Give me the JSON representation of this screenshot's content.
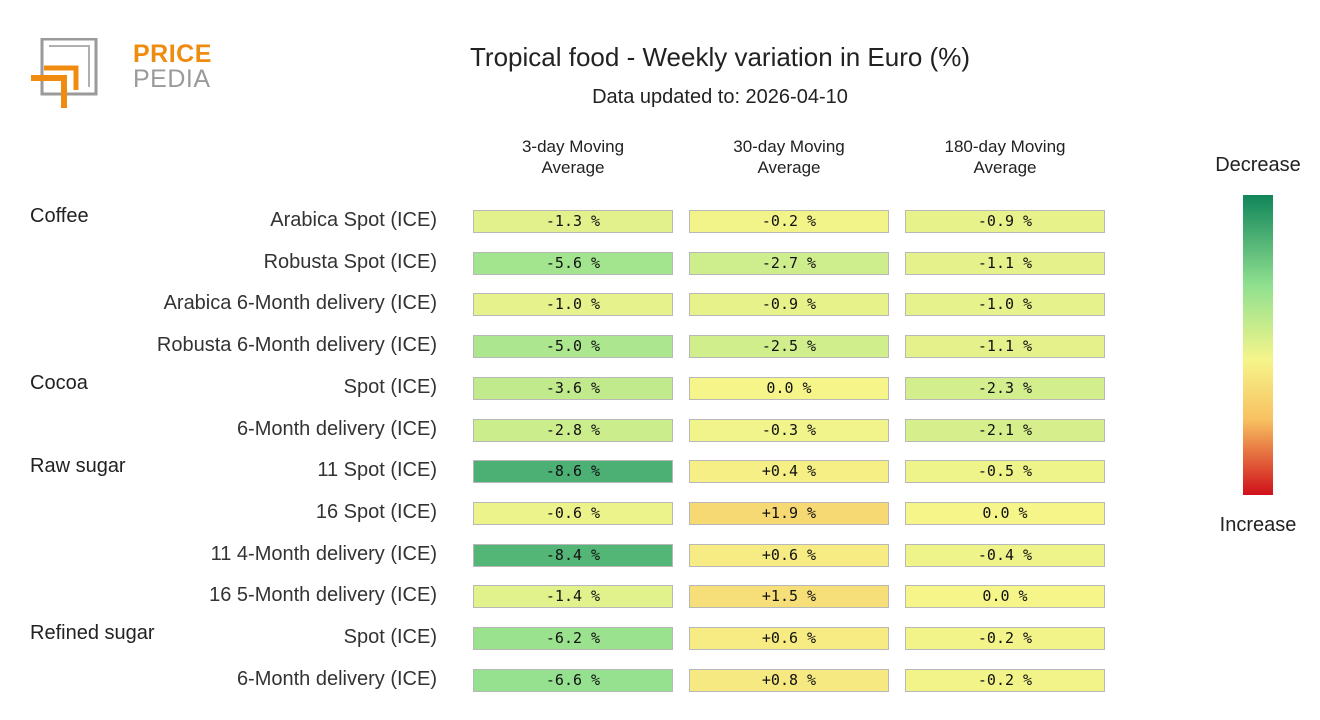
{
  "logo": {
    "line1": "PRICE",
    "line2": "PEDIA"
  },
  "chart_data": {
    "type": "table",
    "title": "Tropical food - Weekly variation in Euro (%)",
    "subtitle": "Data updated to: 2026-04-10",
    "columns": [
      "3-day Moving Average",
      "30-day Moving Average",
      "180-day Moving Average"
    ],
    "column_lines": [
      [
        "3-day Moving",
        "Average"
      ],
      [
        "30-day Moving",
        "Average"
      ],
      [
        "180-day Moving",
        "Average"
      ]
    ],
    "groups": [
      {
        "name": "Coffee",
        "rows": [
          {
            "label": "Arabica Spot (ICE)",
            "values": [
              -1.3,
              -0.2,
              -0.9
            ],
            "text": [
              "-1.3 %",
              "-0.2 %",
              "-0.9 %"
            ]
          },
          {
            "label": "Robusta Spot (ICE)",
            "values": [
              -5.6,
              -2.7,
              -1.1
            ],
            "text": [
              "-5.6 %",
              "-2.7 %",
              "-1.1 %"
            ]
          },
          {
            "label": "Arabica 6-Month delivery (ICE)",
            "values": [
              -1.0,
              -0.9,
              -1.0
            ],
            "text": [
              "-1.0 %",
              "-0.9 %",
              "-1.0 %"
            ]
          },
          {
            "label": "Robusta 6-Month delivery (ICE)",
            "values": [
              -5.0,
              -2.5,
              -1.1
            ],
            "text": [
              "-5.0 %",
              "-2.5 %",
              "-1.1 %"
            ]
          }
        ]
      },
      {
        "name": "Cocoa",
        "rows": [
          {
            "label": "Spot (ICE)",
            "values": [
              -3.6,
              0.0,
              -2.3
            ],
            "text": [
              "-3.6 %",
              "0.0 %",
              "-2.3 %"
            ]
          },
          {
            "label": "6-Month delivery (ICE)",
            "values": [
              -2.8,
              -0.3,
              -2.1
            ],
            "text": [
              "-2.8 %",
              "-0.3 %",
              "-2.1 %"
            ]
          }
        ]
      },
      {
        "name": "Raw sugar",
        "rows": [
          {
            "label": "11 Spot (ICE)",
            "values": [
              -8.6,
              0.4,
              -0.5
            ],
            "text": [
              "-8.6 %",
              "+0.4 %",
              "-0.5 %"
            ]
          },
          {
            "label": "16 Spot (ICE)",
            "values": [
              -0.6,
              1.9,
              0.0
            ],
            "text": [
              "-0.6 %",
              "+1.9 %",
              "0.0 %"
            ]
          },
          {
            "label": "11 4-Month delivery (ICE)",
            "values": [
              -8.4,
              0.6,
              -0.4
            ],
            "text": [
              "-8.4 %",
              "+0.6 %",
              "-0.4 %"
            ]
          },
          {
            "label": "16 5-Month delivery (ICE)",
            "values": [
              -1.4,
              1.5,
              0.0
            ],
            "text": [
              "-1.4 %",
              "+1.5 %",
              "0.0 %"
            ]
          }
        ]
      },
      {
        "name": "Refined sugar",
        "rows": [
          {
            "label": "Spot (ICE)",
            "values": [
              -6.2,
              0.6,
              -0.2
            ],
            "text": [
              "-6.2 %",
              "+0.6 %",
              "-0.2 %"
            ]
          },
          {
            "label": "6-Month delivery (ICE)",
            "values": [
              -6.6,
              0.8,
              -0.2
            ],
            "text": [
              "-6.6 %",
              "+0.8 %",
              "-0.2 %"
            ]
          }
        ]
      }
    ],
    "legend": {
      "top": "Decrease",
      "bottom": "Increase",
      "position": "right"
    },
    "colors": {
      "decrease_strong": "#11855a",
      "decrease_mild": "#8fe08f",
      "neutral": "#f5f58a",
      "increase_mild": "#f8c060",
      "increase_strong": "#d0101a"
    }
  }
}
